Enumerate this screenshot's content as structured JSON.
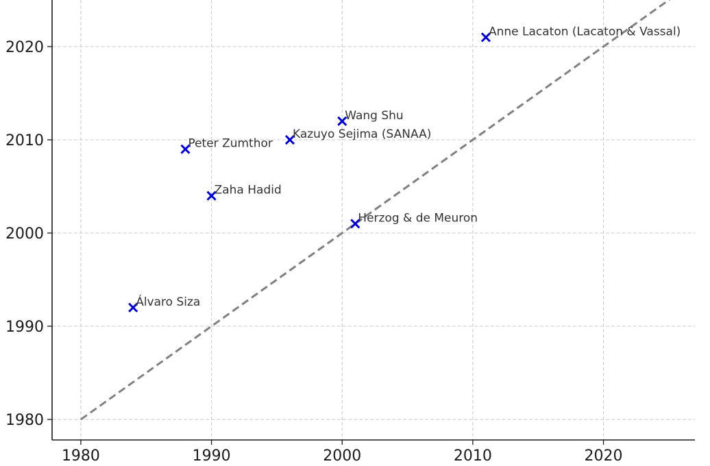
{
  "chart_data": {
    "type": "scatter",
    "title": "",
    "xlabel": "",
    "ylabel": "",
    "xlim": [
      1977.8,
      2027
    ],
    "ylim": [
      1977.8,
      2025
    ],
    "x_ticks": [
      "1980",
      "1990",
      "2000",
      "2010",
      "2020"
    ],
    "y_ticks": [
      "1980",
      "1990",
      "2000",
      "2010",
      "2020"
    ],
    "grid": true,
    "marker": "x",
    "colors": {
      "marker": "#0000cc",
      "reference_line": "#808080",
      "grid": "#c8c8c8"
    },
    "points": [
      {
        "x": 1984,
        "y": 1992,
        "label": "Álvaro Siza"
      },
      {
        "x": 1988,
        "y": 2009,
        "label": "Peter Zumthor"
      },
      {
        "x": 1990,
        "y": 2004,
        "label": "Zaha Hadid"
      },
      {
        "x": 1996,
        "y": 2010,
        "label": "Kazuyo Sejima (SANAA)"
      },
      {
        "x": 2000,
        "y": 2012,
        "label": "Wang Shu"
      },
      {
        "x": 2001,
        "y": 2001,
        "label": "Herzog & de Meuron"
      },
      {
        "x": 2011,
        "y": 2021,
        "label": "Anne Lacaton (Lacaton & Vassal)"
      }
    ],
    "reference_line": {
      "style": "dashed",
      "from": [
        1980,
        1980
      ],
      "to": [
        2027,
        2027
      ]
    }
  }
}
